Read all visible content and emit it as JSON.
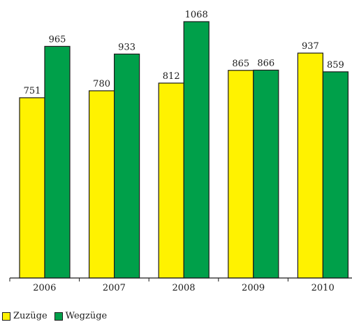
{
  "chart_data": {
    "type": "bar",
    "categories": [
      "2006",
      "2007",
      "2008",
      "2009",
      "2010"
    ],
    "series": [
      {
        "name": "Zuzüge",
        "values": [
          751,
          780,
          812,
          865,
          937
        ],
        "color": "#FFF200"
      },
      {
        "name": "Wegzüge",
        "values": [
          965,
          933,
          1068,
          866,
          859
        ],
        "color": "#00A04A"
      }
    ],
    "ylim": [
      0,
      1100
    ],
    "title": "",
    "xlabel": "",
    "ylabel": "",
    "grid": false,
    "legend": "bottom-left"
  }
}
